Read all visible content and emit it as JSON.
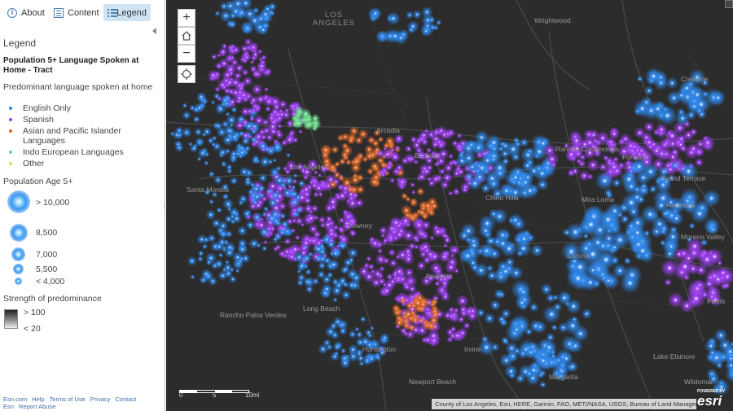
{
  "tabs": {
    "about": "About",
    "content": "Content",
    "legend": "Legend"
  },
  "legend": {
    "heading": "Legend",
    "layer_title": "Population 5+ Language Spoken at Home - Tract",
    "field_label": "Predominant language spoken at home",
    "categories": [
      {
        "label": "English Only",
        "color": "#2f86e8"
      },
      {
        "label": "Spanish",
        "color": "#9d3ff0"
      },
      {
        "label": "Asian and Pacific Islander Languages",
        "color": "#e06a2a"
      },
      {
        "label": "Indo European Languages",
        "color": "#6ad88a"
      },
      {
        "label": "Other",
        "color": "#e8d84a"
      }
    ],
    "size_title": "Population Age 5+",
    "size_stops": [
      "> 10,000",
      "8,500",
      "7,000",
      "5,500",
      "< 4,000"
    ],
    "strength_title": "Strength of predominance",
    "strength_stops": [
      "> 100",
      "< 20"
    ]
  },
  "footer": {
    "links": [
      "Esri.com",
      "Help",
      "Terms of Use",
      "Privacy",
      "Contact Esri",
      "Report Abuse"
    ]
  },
  "map": {
    "places": [
      {
        "text": "LOS ANGELES",
        "cls": "big"
      },
      {
        "text": "Wrightwood",
        "cls": ""
      },
      {
        "text": "Crestline",
        "cls": ""
      },
      {
        "text": "Arcadia",
        "cls": ""
      },
      {
        "text": "Rancho Cucamonga",
        "cls": ""
      },
      {
        "text": "Los Angeles",
        "cls": ""
      },
      {
        "text": "Santa Monica",
        "cls": ""
      },
      {
        "text": "Chino Hills",
        "cls": ""
      },
      {
        "text": "Mira Loma",
        "cls": ""
      },
      {
        "text": "Grand Terrace",
        "cls": ""
      },
      {
        "text": "Moreno Valley",
        "cls": ""
      },
      {
        "text": "Corona",
        "cls": ""
      },
      {
        "text": "Anaheim",
        "cls": ""
      },
      {
        "text": "Long Beach",
        "cls": ""
      },
      {
        "text": "Rancho Palos Verdes",
        "cls": ""
      },
      {
        "text": "Irvine",
        "cls": ""
      },
      {
        "text": "Lake Elsinore",
        "cls": ""
      },
      {
        "text": "Wildomar",
        "cls": ""
      },
      {
        "text": "Perris",
        "cls": ""
      },
      {
        "text": "Riverside",
        "cls": ""
      },
      {
        "text": "Newport Beach",
        "cls": ""
      },
      {
        "text": "Margarita",
        "cls": ""
      },
      {
        "text": "Huntington",
        "cls": ""
      },
      {
        "text": "Downey",
        "cls": ""
      },
      {
        "text": "Burbank",
        "cls": ""
      },
      {
        "text": "Fontana",
        "cls": ""
      }
    ],
    "controls": {
      "zoom_in": "+",
      "zoom_out": "−",
      "home_icon": "home-icon",
      "locate_icon": "locate-icon"
    },
    "scale_labels": [
      "0",
      "5",
      "10mi"
    ],
    "attribution": "County of Los Angeles, Esri, HERE, Garmin, FAO, METI/NASA, USGS, Bureau of Land Management, ...",
    "logo_small": "POWERED BY",
    "logo_word": "esri"
  }
}
